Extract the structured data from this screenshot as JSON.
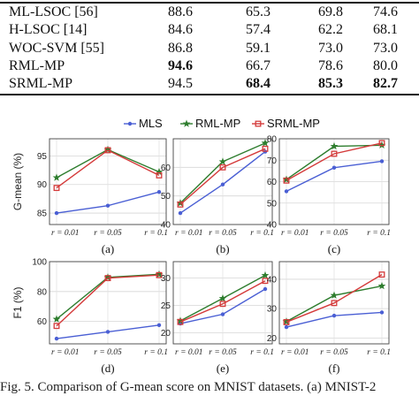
{
  "table": {
    "rows": [
      {
        "method": "ML-LSOC [56]",
        "values": [
          "88.6",
          "65.3",
          "69.8",
          "74.6"
        ],
        "bold": [
          false,
          false,
          false,
          false
        ]
      },
      {
        "method": "H-LSOC [14]",
        "values": [
          "84.6",
          "57.4",
          "62.2",
          "68.1"
        ],
        "bold": [
          false,
          false,
          false,
          false
        ]
      },
      {
        "method": "WOC-SVM [55]",
        "values": [
          "86.8",
          "59.1",
          "73.0",
          "73.0"
        ],
        "bold": [
          false,
          false,
          false,
          false
        ]
      },
      {
        "method": "RML-MP",
        "values": [
          "94.6",
          "66.7",
          "78.6",
          "80.0"
        ],
        "bold": [
          true,
          false,
          false,
          false
        ]
      },
      {
        "method": "SRML-MP",
        "values": [
          "94.5",
          "68.4",
          "85.3",
          "82.7"
        ],
        "bold": [
          false,
          true,
          true,
          true
        ]
      }
    ]
  },
  "legend": {
    "items": [
      {
        "label": "MLS",
        "color": "#4a5fd4",
        "marker": "circle"
      },
      {
        "label": "RML-MP",
        "color": "#2e7d2e",
        "marker": "star"
      },
      {
        "label": "SRML-MP",
        "color": "#d43a3a",
        "marker": "square"
      }
    ]
  },
  "chart_data": [
    {
      "panel": "(a)",
      "type": "line",
      "ylabel": "G-mean (%)",
      "categories": [
        "r = 0.01",
        "r = 0.05",
        "r = 0.1"
      ],
      "ylim": [
        83,
        98
      ],
      "yticks": [
        85,
        90,
        95
      ],
      "series": [
        {
          "name": "MLS",
          "values": [
            85.0,
            86.3,
            88.7
          ]
        },
        {
          "name": "RML-MP",
          "values": [
            91.2,
            96.1,
            92.2
          ]
        },
        {
          "name": "SRML-MP",
          "values": [
            89.4,
            96.0,
            91.6
          ]
        }
      ]
    },
    {
      "panel": "(b)",
      "type": "line",
      "ylabel": "",
      "categories": [
        "r = 0.01",
        "r = 0.05",
        "r = 0.1"
      ],
      "ylim": [
        40,
        70
      ],
      "yticks": [
        40,
        50,
        60
      ],
      "series": [
        {
          "name": "MLS",
          "values": [
            44.0,
            54.0,
            65.5
          ]
        },
        {
          "name": "RML-MP",
          "values": [
            47.5,
            62.0,
            68.5
          ]
        },
        {
          "name": "SRML-MP",
          "values": [
            47.0,
            60.0,
            66.5
          ]
        }
      ]
    },
    {
      "panel": "(c)",
      "type": "line",
      "ylabel": "",
      "categories": [
        "r = 0.01",
        "r = 0.05",
        "r = 0.1"
      ],
      "ylim": [
        40,
        80
      ],
      "yticks": [
        40,
        50,
        60,
        70,
        80
      ],
      "series": [
        {
          "name": "MLS",
          "values": [
            55.5,
            66.5,
            69.5
          ]
        },
        {
          "name": "RML-MP",
          "values": [
            61.0,
            76.5,
            77.0
          ]
        },
        {
          "name": "SRML-MP",
          "values": [
            60.5,
            73.0,
            78.0
          ]
        }
      ]
    },
    {
      "panel": "(d)",
      "type": "line",
      "ylabel": "F1 (%)",
      "categories": [
        "r = 0.01",
        "r = 0.05",
        "r = 0.1"
      ],
      "ylim": [
        45,
        100
      ],
      "yticks": [
        60,
        80,
        100
      ],
      "series": [
        {
          "name": "MLS",
          "values": [
            48.5,
            53.0,
            57.5
          ]
        },
        {
          "name": "RML-MP",
          "values": [
            61.5,
            89.5,
            91.5
          ]
        },
        {
          "name": "SRML-MP",
          "values": [
            57.0,
            89.0,
            91.0
          ]
        }
      ]
    },
    {
      "panel": "(e)",
      "type": "line",
      "ylabel": "",
      "categories": [
        "r = 0.01",
        "r = 0.05",
        "r = 0.1"
      ],
      "ylim": [
        18,
        33
      ],
      "yticks": [
        20,
        25,
        30
      ],
      "series": [
        {
          "name": "MLS",
          "values": [
            21.7,
            23.4,
            28.0
          ]
        },
        {
          "name": "RML-MP",
          "values": [
            22.2,
            26.3,
            30.5
          ]
        },
        {
          "name": "SRML-MP",
          "values": [
            22.0,
            25.3,
            29.5
          ]
        }
      ]
    },
    {
      "panel": "(f)",
      "type": "line",
      "ylabel": "",
      "categories": [
        "r = 0.01",
        "r = 0.05",
        "r = 0.1"
      ],
      "ylim": [
        18,
        46
      ],
      "yticks": [
        20,
        30,
        40
      ],
      "series": [
        {
          "name": "MLS",
          "values": [
            23.7,
            27.6,
            28.7
          ]
        },
        {
          "name": "RML-MP",
          "values": [
            25.6,
            34.5,
            37.7
          ]
        },
        {
          "name": "SRML-MP",
          "values": [
            25.4,
            31.9,
            41.6
          ]
        }
      ]
    }
  ],
  "caption": {
    "text": "Fig. 5.   Comparison of G-mean score on MNIST datasets. (a) MNIST-2"
  }
}
